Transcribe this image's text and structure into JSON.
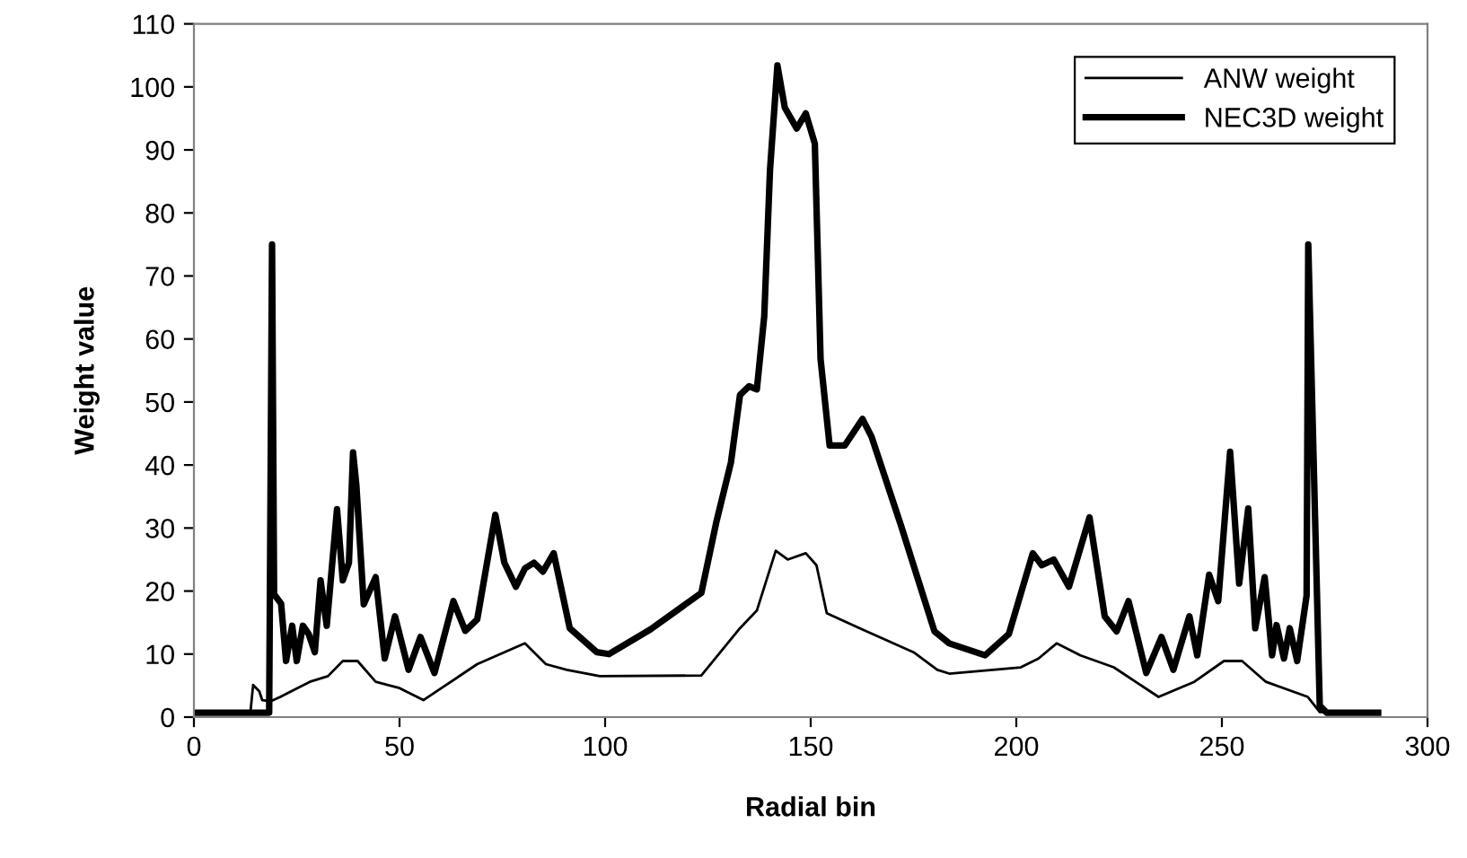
{
  "chart_data": {
    "type": "line",
    "xlabel": "Radial bin",
    "ylabel": "Weight value",
    "xlim": [
      0,
      300
    ],
    "xticks": [
      0,
      50,
      100,
      150,
      200,
      250,
      300
    ],
    "ylim": [
      0,
      110
    ],
    "yticks": [
      0,
      10,
      20,
      30,
      40,
      50,
      60,
      70,
      80,
      90,
      100,
      110
    ],
    "grid": false,
    "legend": "top right",
    "marker": "none",
    "line_style": "solid",
    "series": [
      {
        "name": "ANW weight",
        "color": "#000000",
        "x": [
          0,
          13.7,
          14.4,
          15.9,
          16.6,
          18.6,
          21,
          28.2,
          32.6,
          36.2,
          39.8,
          44.2,
          50,
          55.8,
          60.2,
          68.9,
          75.5,
          80.5,
          85.6,
          90.7,
          98.7,
          123.4,
          132.8,
          136.9,
          141.5,
          144.4,
          148.8,
          151.4,
          153.9,
          161.9,
          175,
          180.8,
          183.7,
          201.1,
          205.4,
          209.8,
          215.6,
          223.7,
          234.6,
          243.3,
          250.5,
          254.9,
          260.7,
          270.9,
          273.8,
          288
        ],
        "values": [
          0.5,
          0.5,
          5.1,
          4.1,
          2.7,
          2.5,
          3.2,
          5.6,
          6.5,
          8.9,
          8.9,
          5.6,
          4.6,
          2.7,
          4.6,
          8.4,
          10.3,
          11.7,
          8.4,
          7.5,
          6.5,
          6.6,
          14.1,
          16.9,
          26.4,
          25,
          26,
          24.1,
          16.5,
          14.1,
          10.3,
          7.5,
          6.9,
          7.9,
          9.3,
          11.7,
          9.8,
          7.9,
          3.2,
          5.6,
          8.9,
          8.9,
          5.6,
          3.2,
          0.8,
          0.5
        ]
      },
      {
        "name": "NEC3D weight",
        "color": "#000000",
        "x": [
          0,
          18.3,
          19,
          19.5,
          21.2,
          22.4,
          23.9,
          25,
          26.5,
          27.9,
          29.4,
          30.8,
          32.3,
          34.8,
          36.2,
          37.7,
          38.7,
          39.5,
          41.3,
          44.2,
          46.4,
          48.9,
          52.2,
          55.1,
          58.5,
          63.1,
          66,
          68.9,
          73.3,
          75.5,
          78.3,
          80.5,
          82.7,
          84.9,
          87.5,
          91.4,
          98,
          100.9,
          111,
          123.4,
          127,
          130.6,
          132.8,
          135,
          136.9,
          138.7,
          140.1,
          141.9,
          143.7,
          146.6,
          148.8,
          151,
          152.4,
          154.6,
          158.3,
          162.6,
          164.8,
          172,
          180.1,
          183.7,
          192.4,
          198.2,
          204,
          206.2,
          209.1,
          212.8,
          217.8,
          221.5,
          224.4,
          227.3,
          231.6,
          235.3,
          238.2,
          242.1,
          244,
          246.9,
          249.1,
          252,
          254.2,
          256.4,
          258.1,
          260.4,
          262.2,
          263.3,
          265.1,
          266.5,
          268.3,
          270.6,
          271,
          273.8,
          275.5,
          288
        ],
        "values": [
          0.7,
          0.7,
          75,
          19.5,
          18,
          8.9,
          14.5,
          8.9,
          14.5,
          13.2,
          10.3,
          21.7,
          14.5,
          33,
          21.7,
          24.5,
          42,
          36.8,
          17.9,
          22.2,
          9.3,
          16,
          7.5,
          12.7,
          7,
          18.4,
          13.7,
          15.5,
          32.1,
          24.5,
          20.7,
          23.6,
          24.5,
          23.1,
          26,
          14.1,
          10.3,
          10,
          13.9,
          19.7,
          30.8,
          40.4,
          51.1,
          52.5,
          52,
          63.6,
          86.8,
          103.4,
          96.7,
          93.4,
          95.8,
          91,
          56.8,
          43.1,
          43.1,
          47.3,
          44.5,
          30.3,
          13.6,
          11.7,
          9.8,
          13.2,
          26,
          24.1,
          25,
          20.7,
          31.7,
          16,
          13.6,
          18.4,
          7,
          12.7,
          7.5,
          16,
          9.8,
          22.6,
          18.4,
          42.1,
          21.2,
          33.1,
          14.1,
          22.2,
          9.8,
          14.6,
          9.3,
          14.1,
          8.9,
          19.3,
          75,
          1.8,
          0.7,
          0.7
        ]
      }
    ]
  }
}
